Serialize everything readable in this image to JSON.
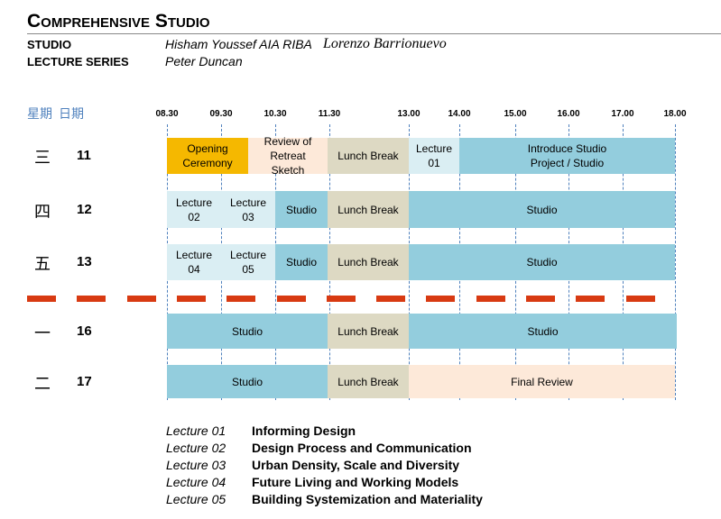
{
  "header": {
    "title": "Comprehensive Studio",
    "rows": [
      {
        "label": "STUDIO",
        "names": [
          "Hisham Youssef AIA RIBA",
          "Lorenzo Barrionuevo"
        ]
      },
      {
        "label": "LECTURE SERIES",
        "names": [
          "Peter Duncan"
        ]
      }
    ]
  },
  "schedule": {
    "day_header": "星期",
    "date_header": "日期",
    "times": [
      "08.30",
      "09.30",
      "10.30",
      "11.30",
      "13.00",
      "14.00",
      "15.00",
      "16.00",
      "17.00",
      "18.00"
    ],
    "days": [
      {
        "weekday": "三",
        "date": "11",
        "blocks": [
          {
            "label": "Opening Ceremony",
            "color": "#f5b800"
          },
          {
            "label": "Review of Retreat Sketch",
            "color": "#fde9d9"
          },
          {
            "label": "Lunch Break",
            "color": "#ddd9c3"
          },
          {
            "label": "Lecture 01",
            "color": "#daeef3"
          },
          {
            "label": "Introduce Studio Project / Studio",
            "color": "#93cddd"
          }
        ]
      },
      {
        "weekday": "四",
        "date": "12",
        "blocks": [
          {
            "label": "Lecture 02",
            "color": "#daeef3"
          },
          {
            "label": "Lecture 03",
            "color": "#daeef3"
          },
          {
            "label": "Studio",
            "color": "#93cddd"
          },
          {
            "label": "Lunch Break",
            "color": "#ddd9c3"
          },
          {
            "label": "Studio",
            "color": "#93cddd"
          }
        ]
      },
      {
        "weekday": "五",
        "date": "13",
        "blocks": [
          {
            "label": "Lecture 04",
            "color": "#daeef3"
          },
          {
            "label": "Lecture 05",
            "color": "#daeef3"
          },
          {
            "label": "Studio",
            "color": "#93cddd"
          },
          {
            "label": "Lunch Break",
            "color": "#ddd9c3"
          },
          {
            "label": "Studio",
            "color": "#93cddd"
          }
        ]
      },
      {
        "weekday": "一",
        "date": "16",
        "blocks": [
          {
            "label": "Studio",
            "color": "#93cddd"
          },
          {
            "label": "Lunch Break",
            "color": "#ddd9c3"
          },
          {
            "label": "Studio",
            "color": "#93cddd"
          }
        ]
      },
      {
        "weekday": "二",
        "date": "17",
        "blocks": [
          {
            "label": "Studio",
            "color": "#93cddd"
          },
          {
            "label": "Lunch Break",
            "color": "#ddd9c3"
          },
          {
            "label": "Final Review",
            "color": "#fde9d9"
          }
        ]
      }
    ]
  },
  "lectures": [
    {
      "code": "Lecture 01",
      "title": "Informing Design"
    },
    {
      "code": "Lecture 02",
      "title": "Design Process and Communication"
    },
    {
      "code": "Lecture 03",
      "title": "Urban Density, Scale and Diversity"
    },
    {
      "code": "Lecture 04",
      "title": "Future Living and Working Models"
    },
    {
      "code": "Lecture 05",
      "title": "Building Systemization and Materiality"
    }
  ]
}
